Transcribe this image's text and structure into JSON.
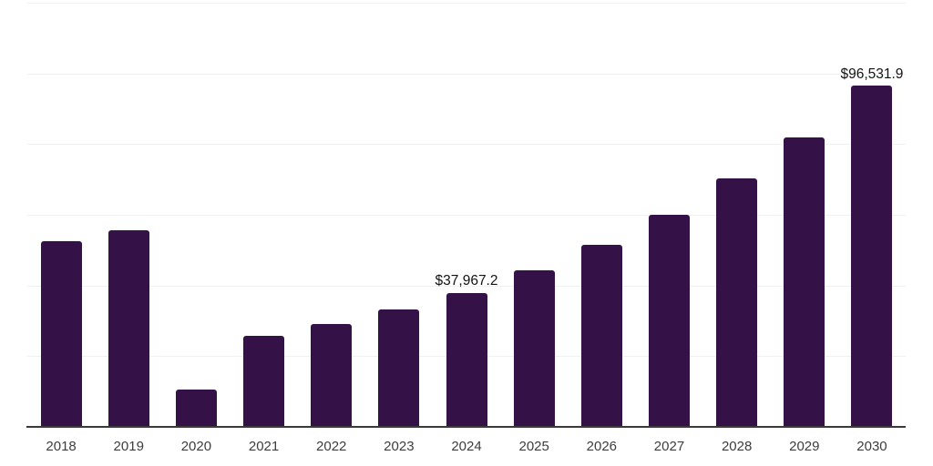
{
  "chart_data": {
    "type": "bar",
    "title": "",
    "xlabel": "",
    "ylabel": "",
    "categories": [
      "2018",
      "2019",
      "2020",
      "2021",
      "2022",
      "2023",
      "2024",
      "2025",
      "2026",
      "2027",
      "2028",
      "2029",
      "2030"
    ],
    "values": [
      52600,
      55700,
      10500,
      25700,
      29000,
      33100,
      37967.2,
      44200,
      51600,
      60000,
      70200,
      82000,
      96531.9
    ],
    "data_labels": [
      "",
      "",
      "",
      "",
      "",
      "",
      "$37,967.2",
      "",
      "",
      "",
      "",
      "",
      "$96,531.9"
    ],
    "ylim": [
      0,
      120000
    ],
    "gridline_count": 7,
    "grid": "horizontal",
    "legend": "none",
    "y_axis_tick_labels": "none",
    "bar_color": "#341247",
    "axis_line_color": "#3a3a3a",
    "gridline_color": "#f1f1f3",
    "tick_label_color": "#3d3d3d",
    "data_label_color": "#131313",
    "background_color": "#ffffff"
  }
}
